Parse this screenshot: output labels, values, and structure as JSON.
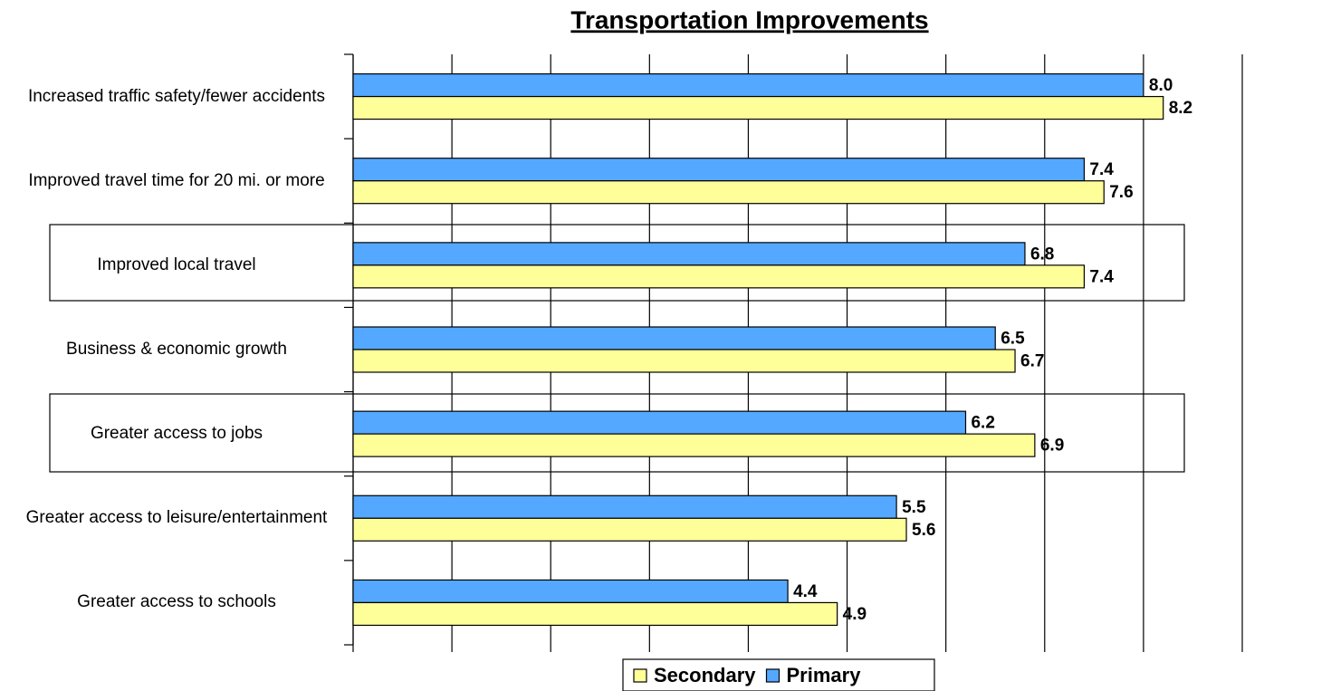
{
  "chart_data": {
    "type": "hbar",
    "title": "Transportation Improvements",
    "categories": [
      "Increased traffic safety/fewer accidents",
      "Improved travel time for 20 mi. or more",
      "Improved local travel",
      "Business & economic growth",
      "Greater access to jobs",
      "Greater access to leisure/entertainment",
      "Greater access to schools"
    ],
    "series": [
      {
        "name": "Primary",
        "color": "#55a8ff",
        "values": [
          8,
          7.4,
          6.8,
          6.5,
          6.2,
          5.5,
          4.4
        ],
        "value_labels": [
          "8.0",
          "7.4",
          "6.8",
          "6.5",
          "6.2",
          "5.5",
          "4.4"
        ]
      },
      {
        "name": "Secondary",
        "color": "#ffff99",
        "values": [
          8.2,
          7.6,
          7.4,
          6.7,
          6.9,
          5.6,
          4.9
        ],
        "value_labels": [
          "8.2",
          "7.6",
          "7.4",
          "6.7",
          "6.9",
          "5.6",
          "4.9"
        ]
      }
    ],
    "xlim": [
      0,
      9
    ],
    "xticks": [
      0,
      1,
      2,
      3,
      4,
      5,
      6,
      7,
      8,
      9
    ],
    "grid": true,
    "legend": "bottom"
  }
}
